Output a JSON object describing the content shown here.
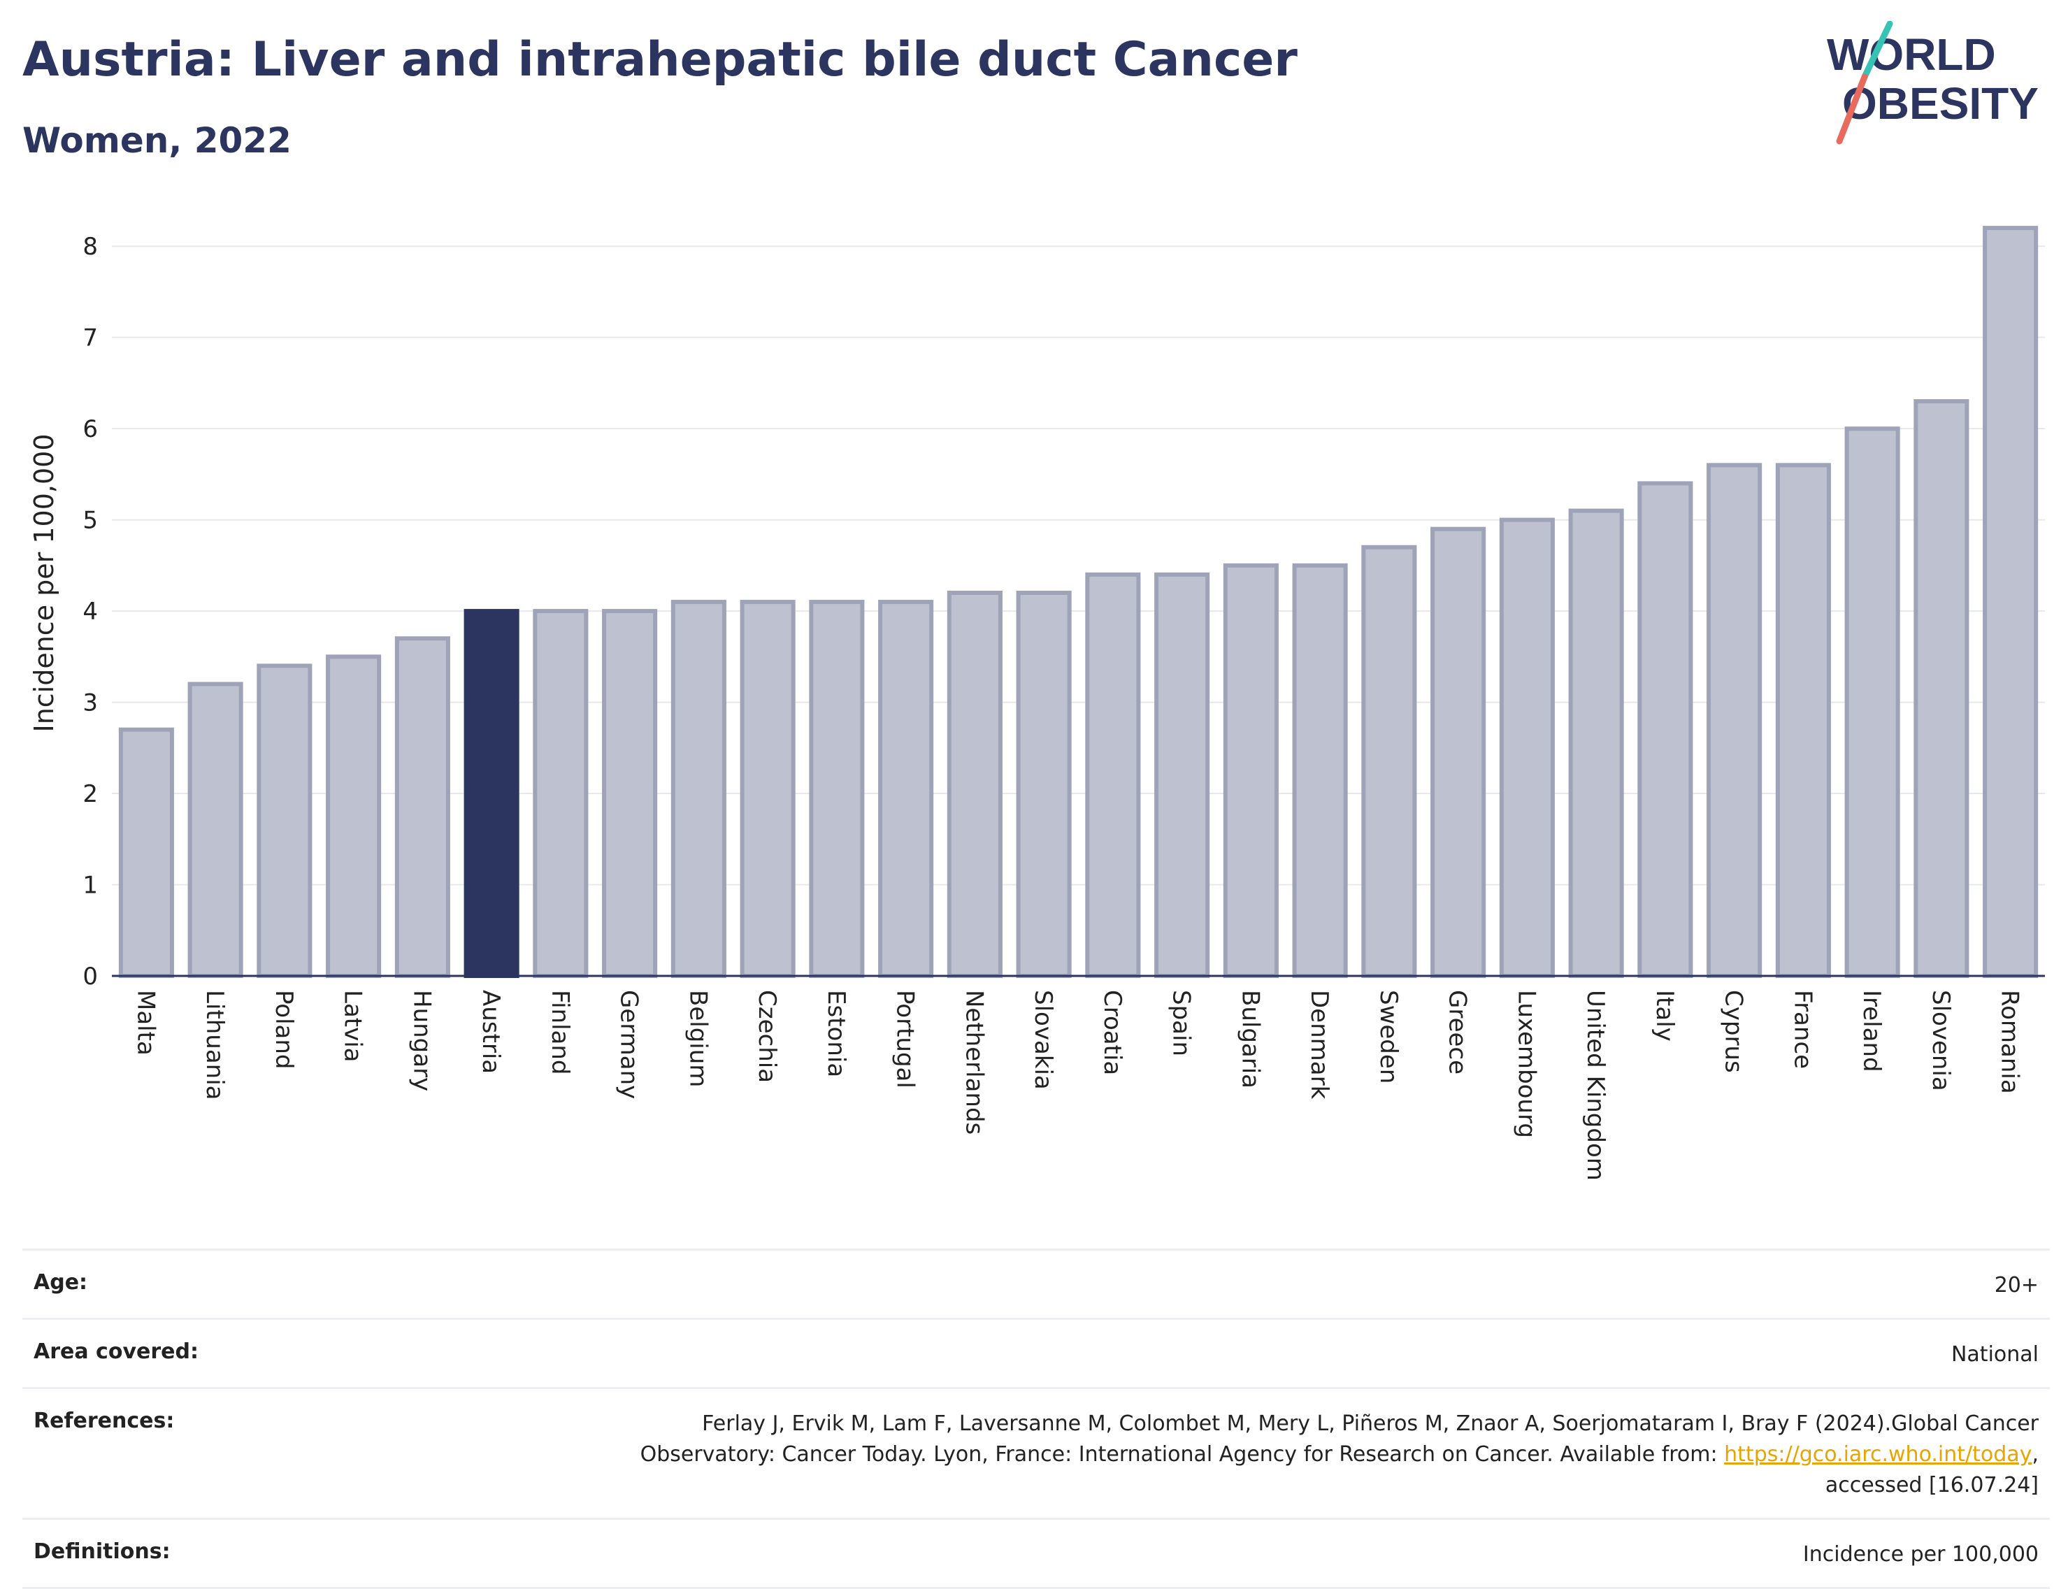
{
  "title": "Austria: Liver and intrahepatic bile duct Cancer",
  "subtitle": "Women, 2022",
  "logo": {
    "line1": "WORLD",
    "line2": "OBESITY"
  },
  "colors": {
    "highlight": "#2b3560",
    "bar_fill": "#bec1cf",
    "bar_stroke": "#9ea3b8",
    "text_dark": "#2b3560",
    "logo_teal": "#36c2b4",
    "logo_coral": "#e86a5c",
    "link": "#e8a400"
  },
  "chart_data": {
    "type": "bar",
    "ylabel": "Incidence per 100,000",
    "xlabel": "",
    "ylim": [
      0,
      8.4
    ],
    "yticks": [
      0,
      1,
      2,
      3,
      4,
      5,
      6,
      7,
      8
    ],
    "grid": true,
    "highlight_category": "Austria",
    "categories": [
      "Malta",
      "Lithuania",
      "Poland",
      "Latvia",
      "Hungary",
      "Austria",
      "Finland",
      "Germany",
      "Belgium",
      "Czechia",
      "Estonia",
      "Portugal",
      "Netherlands",
      "Slovakia",
      "Croatia",
      "Spain",
      "Bulgaria",
      "Denmark",
      "Sweden",
      "Greece",
      "Luxembourg",
      "United Kingdom",
      "Italy",
      "Cyprus",
      "France",
      "Ireland",
      "Slovenia",
      "Romania"
    ],
    "values": [
      2.7,
      3.2,
      3.4,
      3.5,
      3.7,
      4.0,
      4.0,
      4.0,
      4.1,
      4.1,
      4.1,
      4.1,
      4.2,
      4.2,
      4.4,
      4.4,
      4.5,
      4.5,
      4.7,
      4.9,
      5.0,
      5.1,
      5.4,
      5.6,
      5.6,
      6.0,
      6.3,
      8.2
    ]
  },
  "info": {
    "age_label": "Age:",
    "age_value": "20+",
    "area_label": "Area covered:",
    "area_value": "National",
    "references_label": "References:",
    "references_line1": "Ferlay J, Ervik M, Lam F, Laversanne M, Colombet M, Mery L, Piñeros M, Znaor A, Soerjomataram I, Bray F (2024).Global Cancer",
    "references_line2_pre": "Observatory: Cancer Today. Lyon, France: International Agency for Research on Cancer. Available from: ",
    "references_link": "https://gco.iarc.who.int/today",
    "references_line2_post": ",",
    "references_line3": "accessed [16.07.24]",
    "definitions_label": "Definitions:",
    "definitions_value": "Incidence per 100,000"
  }
}
